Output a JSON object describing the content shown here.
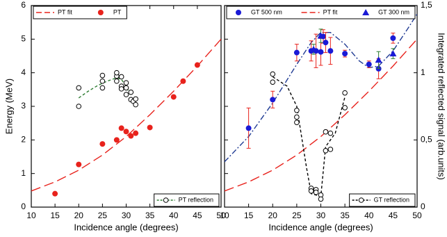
{
  "chart_data": [
    {
      "type": "scatter",
      "xlabel": "Incidence angle (degrees)",
      "ylabel": "Energy (MeV)",
      "xlim": [
        10,
        50
      ],
      "xticks": [
        10,
        15,
        20,
        25,
        30,
        35,
        40,
        45,
        50
      ],
      "ylim": [
        0,
        6
      ],
      "yticks": [
        0,
        1,
        2,
        3,
        4,
        5,
        6
      ],
      "series": [
        {
          "name": "PT fit",
          "color": "#e8221c",
          "line": "dashed",
          "legend": "top",
          "x": [
            10,
            15,
            20,
            25,
            30,
            35,
            40,
            45,
            50
          ],
          "values": [
            0.48,
            0.75,
            1.1,
            1.55,
            2.1,
            2.75,
            3.45,
            4.2,
            5.0
          ]
        },
        {
          "name": "PT",
          "color": "#e8221c",
          "marker": "circle",
          "legend": "top",
          "x": [
            15,
            20,
            25,
            28,
            29,
            30,
            31,
            32,
            35,
            40,
            42,
            45
          ],
          "values": [
            0.4,
            1.27,
            1.88,
            2.0,
            2.35,
            2.25,
            2.12,
            2.2,
            2.37,
            3.28,
            3.75,
            4.23
          ]
        },
        {
          "name": "PT reflection",
          "color": "#000000",
          "marker": "open-circle",
          "legend": "bottom-right",
          "x": [
            20,
            20,
            25,
            25,
            25,
            28,
            28,
            28,
            29,
            29,
            29,
            30,
            30,
            30,
            31,
            31,
            31.5,
            32,
            32
          ],
          "values": [
            3.0,
            3.55,
            3.55,
            3.75,
            3.92,
            3.9,
            4.0,
            3.75,
            3.88,
            3.6,
            3.52,
            3.7,
            3.55,
            3.35,
            3.42,
            3.2,
            3.15,
            3.05,
            3.22
          ],
          "fit": {
            "color": "#2e7d32",
            "x": [
              20,
              22,
              24,
              26,
              28,
              29,
              30,
              31
            ],
            "values": [
              3.25,
              3.45,
              3.62,
              3.75,
              3.85,
              3.8,
              3.6,
              3.3
            ]
          }
        }
      ]
    },
    {
      "type": "scatter",
      "xlabel": "Incidence angle (degrees)",
      "y2label": "Integrated reflected signal (arb.units)",
      "xlim": [
        10,
        50
      ],
      "xticks": [
        10,
        15,
        20,
        25,
        30,
        35,
        40,
        45,
        50
      ],
      "ylim": [
        0,
        6
      ],
      "yticks": [
        0,
        1,
        2,
        3,
        4,
        5,
        6
      ],
      "y2lim": [
        0,
        1.5
      ],
      "y2ticks": [
        {
          "value": 0,
          "label": "0"
        },
        {
          "value": 0.5,
          "label": "0,5"
        },
        {
          "value": 1,
          "label": "1"
        },
        {
          "value": 1.5,
          "label": "1,5"
        }
      ],
      "series": [
        {
          "name": "GT 500 nm",
          "color": "#1a1ad6",
          "marker": "circle",
          "error_color": "#e8221c",
          "legend": "top",
          "x": [
            15,
            20,
            25,
            28,
            29,
            30,
            30.5,
            31,
            32,
            35,
            40,
            42,
            45
          ],
          "values": [
            2.35,
            3.2,
            4.6,
            4.65,
            4.65,
            4.62,
            5.08,
            4.9,
            4.65,
            4.57,
            4.25,
            4.12,
            5.03
          ],
          "errors": [
            0.6,
            0.25,
            0.25,
            0.3,
            0.5,
            0.4,
            0.2,
            0.3,
            0.4,
            0.1,
            0.1,
            0.3,
            0.15
          ]
        },
        {
          "name": "PT fit",
          "color": "#e8221c",
          "line": "dashed",
          "legend": "top",
          "x": [
            10,
            15,
            20,
            25,
            30,
            35,
            40,
            45,
            50
          ],
          "values": [
            0.48,
            0.75,
            1.1,
            1.55,
            2.1,
            2.75,
            3.45,
            4.2,
            5.0
          ]
        },
        {
          "name": "GT 300 nm",
          "color": "#1a1ad6",
          "marker": "triangle",
          "error_color": "#2e7d32",
          "legend": "top",
          "x": [
            28.5,
            30,
            42,
            45
          ],
          "values": [
            4.7,
            5.1,
            4.38,
            4.57
          ],
          "errors": [
            0.15,
            0.2,
            0.25,
            0.15
          ]
        },
        {
          "color": "#1f3a93",
          "line": "dashdot",
          "x": [
            10,
            15,
            20,
            25,
            28,
            30,
            32,
            35,
            38,
            40,
            42,
            45,
            48,
            50
          ],
          "values": [
            1.35,
            2.1,
            3.1,
            4.25,
            4.9,
            5.2,
            5.2,
            4.85,
            4.35,
            4.15,
            4.2,
            4.65,
            5.3,
            5.75
          ]
        },
        {
          "name": "GT reflection",
          "color": "#000000",
          "marker": "open-circle",
          "axis": "y2",
          "legend": "bottom-right",
          "x": [
            20,
            20,
            25,
            25,
            25,
            28,
            28,
            29,
            29,
            30,
            30,
            31,
            31,
            32,
            32,
            35,
            35
          ],
          "values": [
            0.99,
            0.93,
            0.72,
            0.67,
            0.63,
            0.14,
            0.12,
            0.13,
            0.11,
            0.09,
            0.06,
            0.56,
            0.42,
            0.55,
            0.43,
            0.85,
            0.74
          ],
          "fit": {
            "color": "#000000",
            "x": [
              20,
              23,
              25,
              27,
              28,
              30,
              31,
              33,
              35
            ],
            "values": [
              0.97,
              0.9,
              0.75,
              0.3,
              0.1,
              0.08,
              0.45,
              0.55,
              0.82
            ]
          }
        }
      ]
    }
  ]
}
